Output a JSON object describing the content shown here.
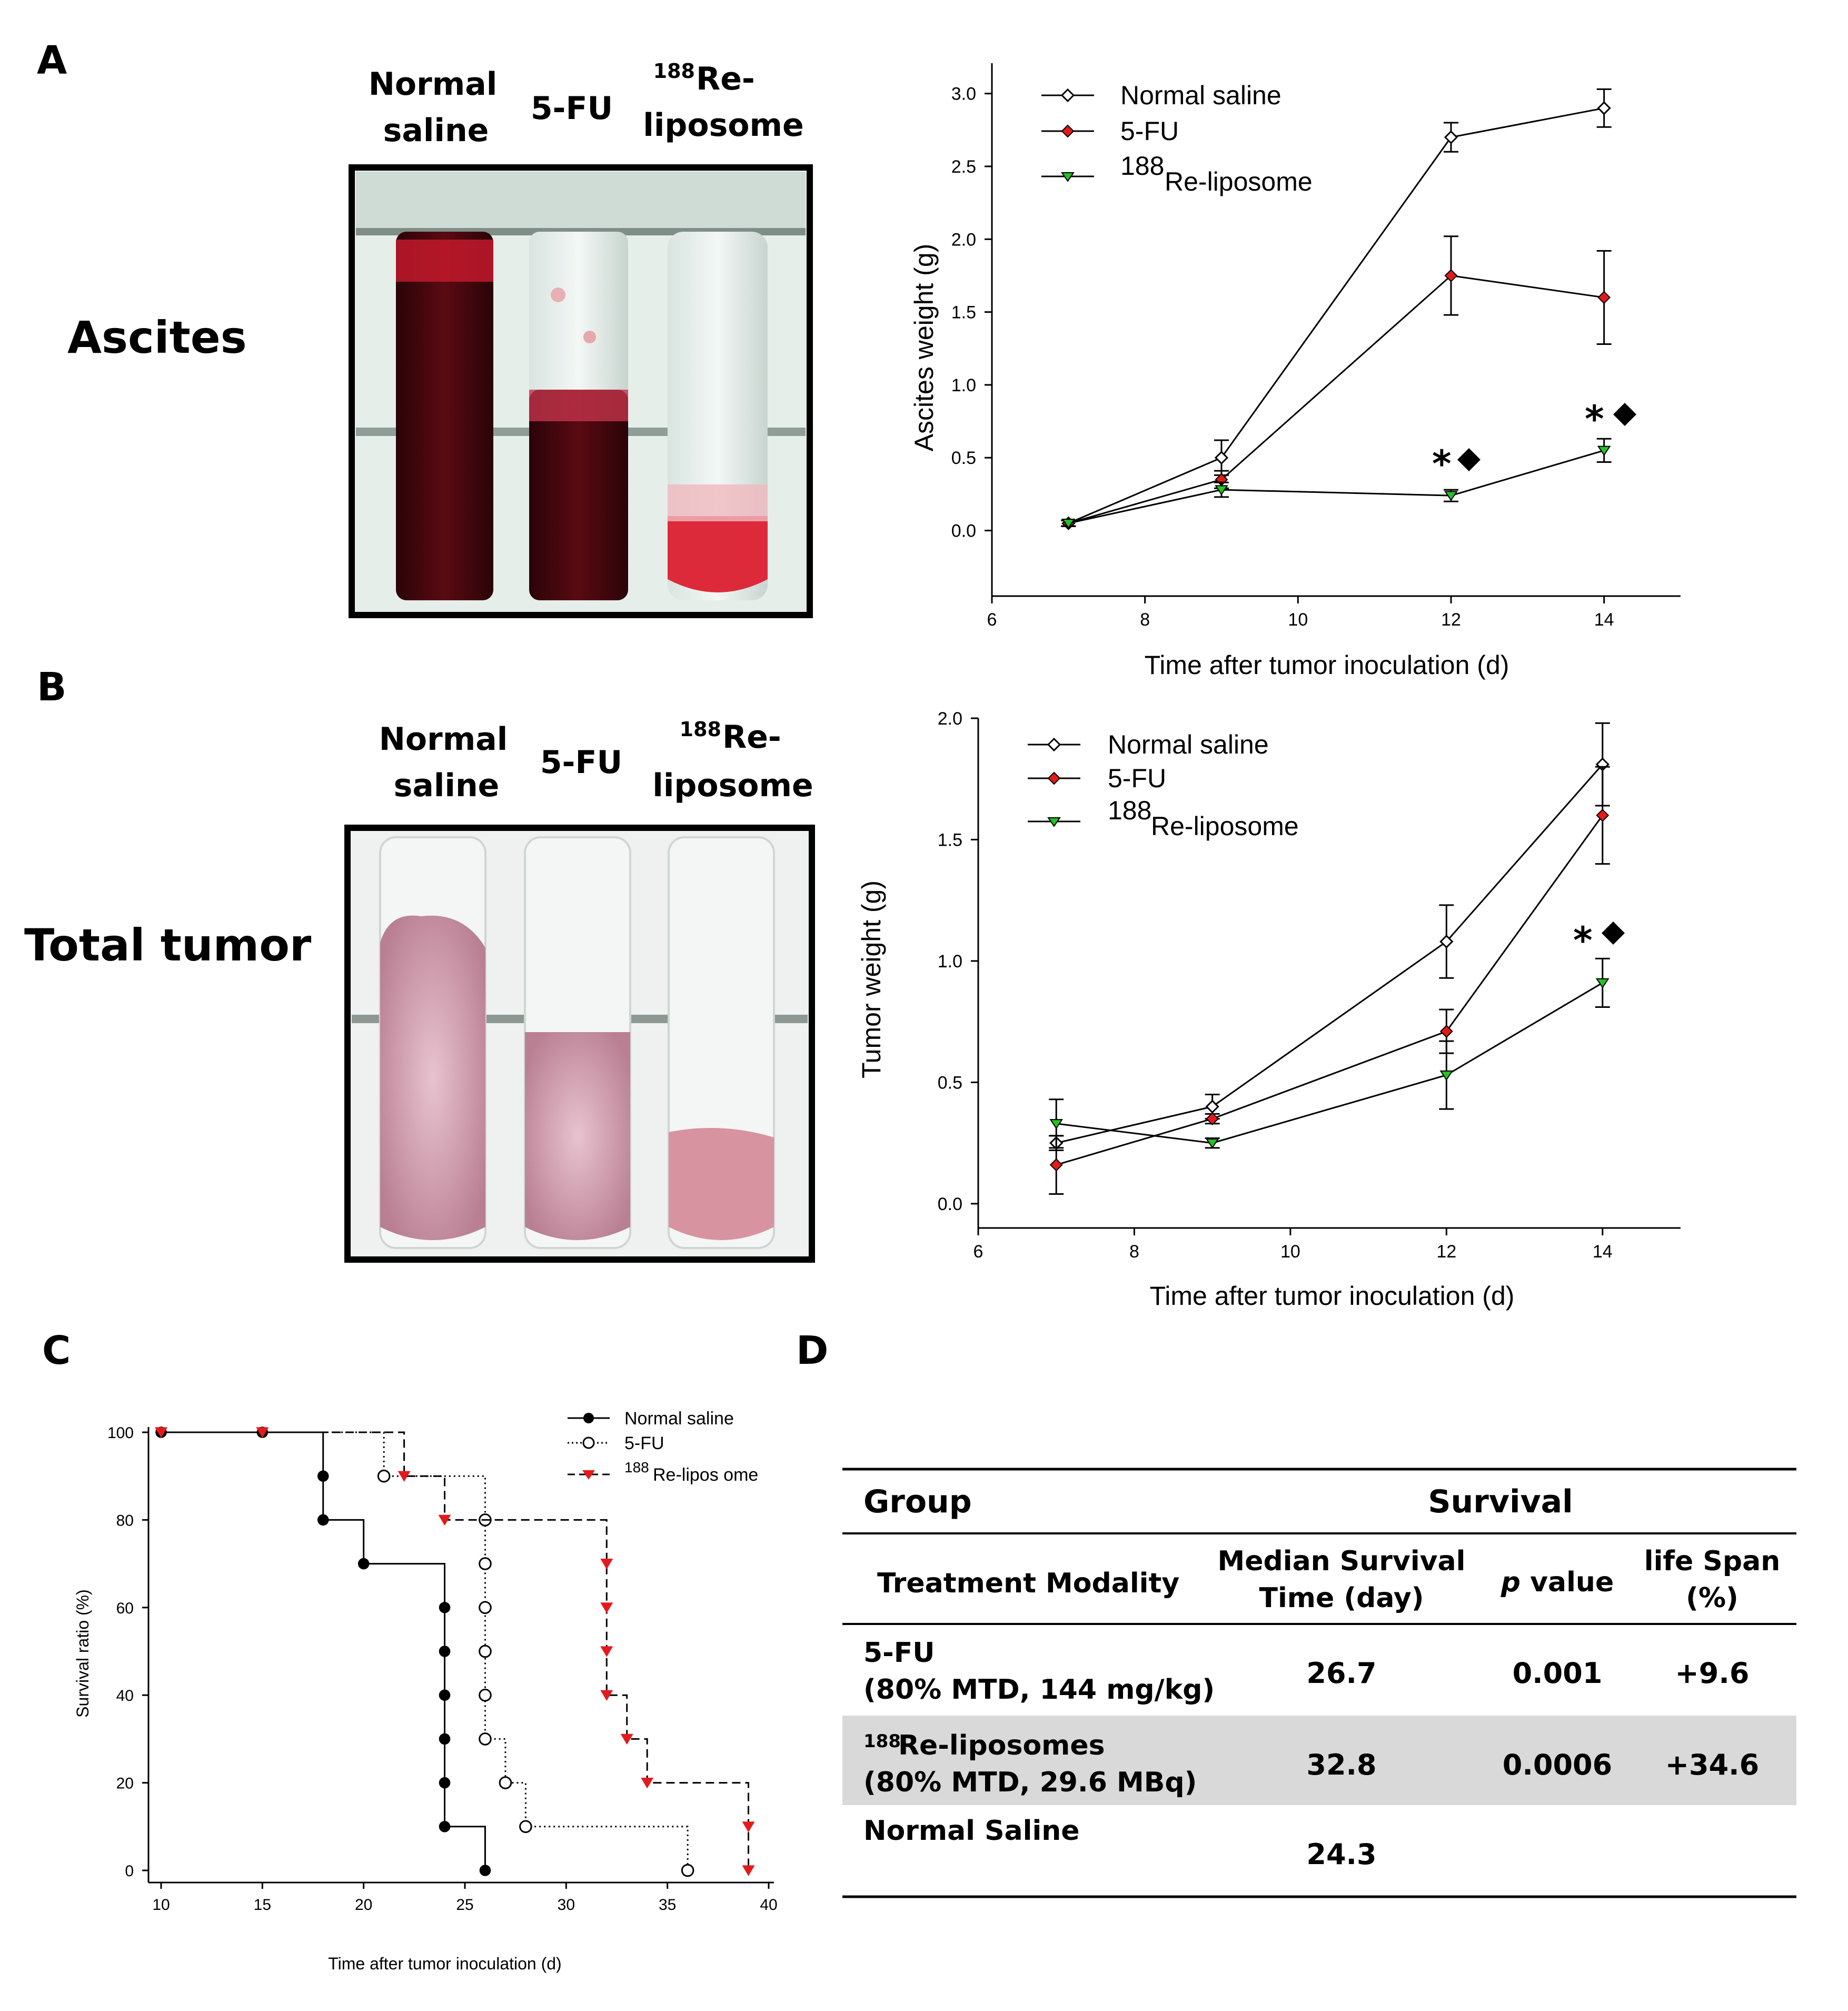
{
  "panels": {
    "a": {
      "letter": "A",
      "row_label": "Ascites",
      "photo_labels": [
        {
          "lines": [
            "Normal",
            "saline"
          ]
        },
        {
          "lines": [
            "5-FU"
          ]
        },
        {
          "lines": [
            "188",
            "Re-",
            "liposome"
          ]
        }
      ]
    },
    "b": {
      "letter": "B",
      "row_label": "Total tumor",
      "photo_labels": [
        {
          "lines": [
            "Normal",
            "saline"
          ]
        },
        {
          "lines": [
            "5-FU"
          ]
        },
        {
          "lines": [
            "188",
            "Re-",
            "liposome"
          ]
        }
      ]
    },
    "c": {
      "letter": "C"
    },
    "d": {
      "letter": "D"
    }
  },
  "colors": {
    "normal_saline": "#ffffff",
    "five_fu": "#e31a1c",
    "re_liposome": "#22c322",
    "table_shade": "#d9d9d9",
    "ascites_blood": "#5a0a12",
    "tumor_tissue": "#d7a6b4"
  },
  "chart_data": [
    {
      "id": "ascites",
      "type": "line",
      "xlabel": "Time after tumor inoculation (d)",
      "ylabel": "Ascites weight (g)",
      "xlim": [
        6,
        15
      ],
      "ylim": [
        -0.45,
        3.1
      ],
      "xticks": [
        6,
        8,
        10,
        12,
        14
      ],
      "yticks": [
        "0.0",
        "0.5",
        "1.0",
        "1.5",
        "2.0",
        "2.5",
        "3.0"
      ],
      "x": [
        7,
        9,
        12,
        14
      ],
      "legend_position": "top-left",
      "series": [
        {
          "name": "Normal saline",
          "values": [
            0.05,
            0.5,
            2.7,
            2.9
          ],
          "err": [
            0.02,
            0.12,
            0.1,
            0.13
          ],
          "marker": "diamond-open"
        },
        {
          "name": "5-FU",
          "values": [
            0.05,
            0.35,
            1.75,
            1.6
          ],
          "err": [
            0.02,
            0.06,
            0.27,
            0.32
          ],
          "marker": "diamond-red"
        },
        {
          "name": "188Re-liposome",
          "name_sup": "188",
          "name_main": "Re-liposome",
          "values": [
            0.05,
            0.28,
            0.24,
            0.55
          ],
          "err": [
            0.02,
            0.05,
            0.04,
            0.08
          ],
          "marker": "triangle-green"
        }
      ],
      "annotations": [
        {
          "x": 12,
          "y": 0.24,
          "text": "*"
        },
        {
          "x": 14,
          "y": 0.55,
          "text": "*"
        }
      ]
    },
    {
      "id": "tumor",
      "type": "line",
      "xlabel": "Time after tumor inoculation (d)",
      "ylabel": "Tumor weight (g)",
      "xlim": [
        6,
        15
      ],
      "ylim": [
        -0.1,
        2.0
      ],
      "xticks": [
        6,
        8,
        10,
        12,
        14
      ],
      "yticks": [
        "0.0",
        "0.5",
        "1.0",
        "1.5",
        "2.0"
      ],
      "x": [
        7,
        9,
        12,
        14
      ],
      "legend_position": "top-left",
      "series": [
        {
          "name": "Normal saline",
          "values": [
            0.25,
            0.4,
            1.08,
            1.81
          ],
          "err": [
            0.03,
            0.05,
            0.15,
            0.17
          ],
          "marker": "diamond-open"
        },
        {
          "name": "5-FU",
          "values": [
            0.16,
            0.35,
            0.71,
            1.6
          ],
          "err": [
            0.12,
            0.02,
            0.09,
            0.2
          ],
          "marker": "diamond-red"
        },
        {
          "name": "188Re-liposome",
          "name_sup": "188",
          "name_main": "Re-liposome",
          "values": [
            0.33,
            0.25,
            0.53,
            0.91
          ],
          "err": [
            0.1,
            0.02,
            0.14,
            0.1
          ],
          "marker": "triangle-green"
        }
      ],
      "annotations": [
        {
          "x": 14,
          "y": 0.91,
          "text": "*"
        }
      ]
    },
    {
      "id": "survival",
      "type": "line",
      "step": true,
      "xlabel": "Time after tumor inoculation (d)",
      "ylabel": "Survival ratio (%)",
      "xlim": [
        10,
        40
      ],
      "ylim": [
        0,
        100
      ],
      "xticks": [
        10,
        15,
        20,
        25,
        30,
        35,
        40
      ],
      "yticks": [
        0,
        20,
        40,
        60,
        80,
        100
      ],
      "legend_position": "top-right",
      "series": [
        {
          "name": "Normal saline",
          "style": "solid",
          "marker": "circle-filled",
          "steps": [
            [
              10,
              100
            ],
            [
              18,
              90
            ],
            [
              18,
              80
            ],
            [
              20,
              70
            ],
            [
              24,
              60
            ],
            [
              24,
              50
            ],
            [
              24,
              40
            ],
            [
              24,
              30
            ],
            [
              24,
              20
            ],
            [
              24,
              10
            ],
            [
              26,
              0
            ]
          ],
          "points": [
            [
              10,
              100
            ],
            [
              15,
              100
            ],
            [
              18,
              90
            ],
            [
              18,
              80
            ],
            [
              20,
              70
            ],
            [
              24,
              60
            ],
            [
              24,
              50
            ],
            [
              24,
              40
            ],
            [
              24,
              30
            ],
            [
              24,
              20
            ],
            [
              24,
              10
            ],
            [
              26,
              0
            ]
          ]
        },
        {
          "name": "5-FU",
          "style": "dotted",
          "marker": "circle-open",
          "steps": [
            [
              10,
              100
            ],
            [
              21,
              90
            ],
            [
              26,
              80
            ],
            [
              26,
              70
            ],
            [
              26,
              60
            ],
            [
              26,
              50
            ],
            [
              26,
              40
            ],
            [
              26,
              30
            ],
            [
              27,
              20
            ],
            [
              28,
              10
            ],
            [
              36,
              0
            ]
          ],
          "points": [
            [
              21,
              90
            ],
            [
              26,
              80
            ],
            [
              26,
              70
            ],
            [
              26,
              60
            ],
            [
              26,
              50
            ],
            [
              26,
              40
            ],
            [
              26,
              30
            ],
            [
              27,
              20
            ],
            [
              28,
              10
            ],
            [
              36,
              0
            ]
          ]
        },
        {
          "name": "188Re-liposome",
          "name_sup": "188",
          "name_main": "Re-lipos ome",
          "style": "dashed",
          "marker": "triangle-red",
          "steps": [
            [
              10,
              100
            ],
            [
              22,
              90
            ],
            [
              24,
              80
            ],
            [
              32,
              70
            ],
            [
              32,
              60
            ],
            [
              32,
              50
            ],
            [
              32,
              40
            ],
            [
              33,
              30
            ],
            [
              34,
              20
            ],
            [
              39,
              10
            ],
            [
              39,
              0
            ]
          ],
          "points": [
            [
              10,
              100
            ],
            [
              15,
              100
            ],
            [
              22,
              90
            ],
            [
              24,
              80
            ],
            [
              32,
              70
            ],
            [
              32,
              60
            ],
            [
              32,
              50
            ],
            [
              32,
              40
            ],
            [
              33,
              30
            ],
            [
              34,
              20
            ],
            [
              39,
              10
            ],
            [
              39,
              0
            ]
          ]
        }
      ]
    }
  ],
  "survival_table": {
    "header": {
      "group": "Group",
      "survival": "Survival"
    },
    "subheader": {
      "modality": "Treatment Modality",
      "mst_line1": "Median Survival",
      "mst_line2": "Time (day)",
      "p_italic": "p",
      "p_rest": " value",
      "ls_line1": "life Span",
      "ls_line2": "(%)"
    },
    "rows": [
      {
        "group_line1": "5-FU",
        "group_line2": "(80% MTD, 144 mg/kg)",
        "mst": "26.7",
        "p": "0.001",
        "ls": "+9.6",
        "shaded": false
      },
      {
        "group_sup": "188",
        "group_line1": "Re-liposomes",
        "group_line2": "(80% MTD, 29.6 MBq)",
        "mst": "32.8",
        "p": "0.0006",
        "ls": "+34.6",
        "shaded": true
      },
      {
        "group_line1": "Normal Saline",
        "group_line2": "",
        "mst": "24.3",
        "p": "",
        "ls": "",
        "shaded": false
      }
    ]
  }
}
